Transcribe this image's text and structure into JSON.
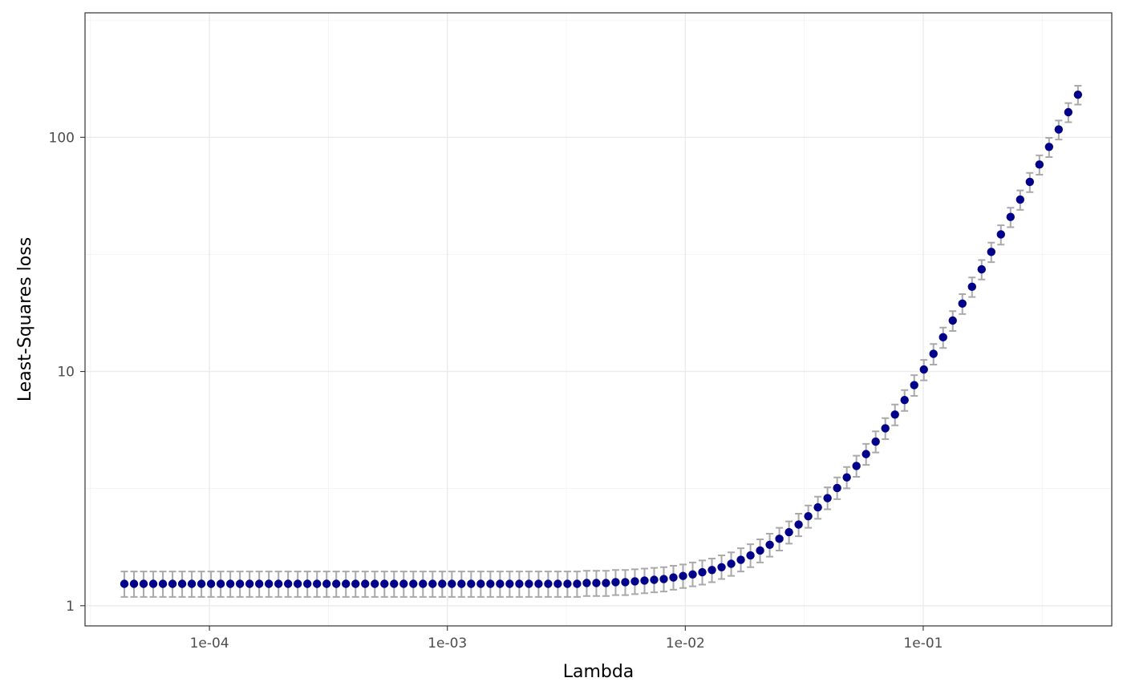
{
  "chart_data": {
    "type": "scatter",
    "title": "",
    "xlabel": "Lambda",
    "ylabel": "Least-Squares loss",
    "x_scale": "log10",
    "y_scale": "log10",
    "xlim": [
      3e-05,
      0.62
    ],
    "ylim": [
      0.82,
      340
    ],
    "x_ticks": [
      0.0001,
      0.001,
      0.01,
      0.1
    ],
    "x_tick_labels": [
      "1e-04",
      "1e-03",
      "1e-02",
      "1e-01"
    ],
    "y_ticks": [
      1,
      10,
      100
    ],
    "y_tick_labels": [
      "1",
      "10",
      "100"
    ],
    "grid": true,
    "legend": "none",
    "point_color": "#00008b",
    "errorbar_color": "#a9a9a9",
    "x_range": [
      4.39e-05,
      0.447
    ],
    "n_points": 100,
    "y": [
      1.24,
      1.24,
      1.24,
      1.24,
      1.24,
      1.24,
      1.24,
      1.24,
      1.24,
      1.24,
      1.24,
      1.24,
      1.24,
      1.24,
      1.24,
      1.24,
      1.24,
      1.24,
      1.24,
      1.24,
      1.24,
      1.24,
      1.24,
      1.24,
      1.24,
      1.24,
      1.24,
      1.24,
      1.24,
      1.24,
      1.24,
      1.24,
      1.24,
      1.24,
      1.24,
      1.24,
      1.24,
      1.24,
      1.24,
      1.24,
      1.24,
      1.24,
      1.24,
      1.24,
      1.24,
      1.24,
      1.24,
      1.24,
      1.25,
      1.25,
      1.25,
      1.26,
      1.26,
      1.27,
      1.28,
      1.29,
      1.3,
      1.32,
      1.34,
      1.36,
      1.39,
      1.42,
      1.46,
      1.51,
      1.57,
      1.64,
      1.72,
      1.82,
      1.93,
      2.06,
      2.22,
      2.41,
      2.63,
      2.88,
      3.18,
      3.53,
      3.95,
      4.44,
      5.02,
      5.72,
      6.55,
      7.55,
      8.75,
      10.2,
      11.9,
      14.0,
      16.5,
      19.5,
      23.0,
      27.3,
      32.4,
      38.5,
      45.7,
      54.2,
      64.5,
      76.5,
      91.0,
      108,
      128,
      152
    ],
    "y_lower": [
      1.09,
      1.09,
      1.09,
      1.09,
      1.09,
      1.09,
      1.09,
      1.09,
      1.09,
      1.09,
      1.09,
      1.09,
      1.09,
      1.09,
      1.09,
      1.09,
      1.09,
      1.09,
      1.09,
      1.09,
      1.09,
      1.09,
      1.09,
      1.09,
      1.09,
      1.09,
      1.09,
      1.09,
      1.09,
      1.09,
      1.09,
      1.09,
      1.09,
      1.09,
      1.09,
      1.09,
      1.09,
      1.09,
      1.09,
      1.09,
      1.09,
      1.09,
      1.09,
      1.09,
      1.09,
      1.09,
      1.09,
      1.09,
      1.1,
      1.1,
      1.1,
      1.11,
      1.11,
      1.12,
      1.13,
      1.14,
      1.15,
      1.17,
      1.19,
      1.21,
      1.23,
      1.26,
      1.3,
      1.34,
      1.4,
      1.46,
      1.53,
      1.62,
      1.72,
      1.84,
      1.98,
      2.15,
      2.35,
      2.58,
      2.85,
      3.17,
      3.55,
      3.99,
      4.51,
      5.14,
      5.89,
      6.79,
      7.87,
      9.17,
      10.7,
      12.6,
      14.9,
      17.6,
      20.8,
      24.7,
      29.3,
      34.8,
      41.3,
      49.0,
      58.3,
      69.2,
      82.3,
      97.8,
      116,
      138
    ],
    "y_upper": [
      1.4,
      1.4,
      1.4,
      1.4,
      1.4,
      1.4,
      1.4,
      1.4,
      1.4,
      1.4,
      1.4,
      1.4,
      1.4,
      1.4,
      1.4,
      1.4,
      1.4,
      1.4,
      1.4,
      1.4,
      1.4,
      1.4,
      1.4,
      1.4,
      1.4,
      1.4,
      1.4,
      1.4,
      1.4,
      1.4,
      1.4,
      1.4,
      1.4,
      1.4,
      1.4,
      1.4,
      1.4,
      1.4,
      1.4,
      1.4,
      1.4,
      1.4,
      1.4,
      1.4,
      1.4,
      1.4,
      1.4,
      1.4,
      1.41,
      1.41,
      1.41,
      1.42,
      1.42,
      1.43,
      1.44,
      1.45,
      1.46,
      1.48,
      1.5,
      1.53,
      1.56,
      1.59,
      1.64,
      1.69,
      1.76,
      1.83,
      1.92,
      2.03,
      2.15,
      2.29,
      2.47,
      2.68,
      2.92,
      3.2,
      3.53,
      3.91,
      4.37,
      4.91,
      5.55,
      6.32,
      7.23,
      8.33,
      9.65,
      11.2,
      13.1,
      15.4,
      18.1,
      21.4,
      25.2,
      29.9,
      35.5,
      42.1,
      50.0,
      59.3,
      70.5,
      83.7,
      99.5,
      118,
      140,
      166
    ]
  }
}
